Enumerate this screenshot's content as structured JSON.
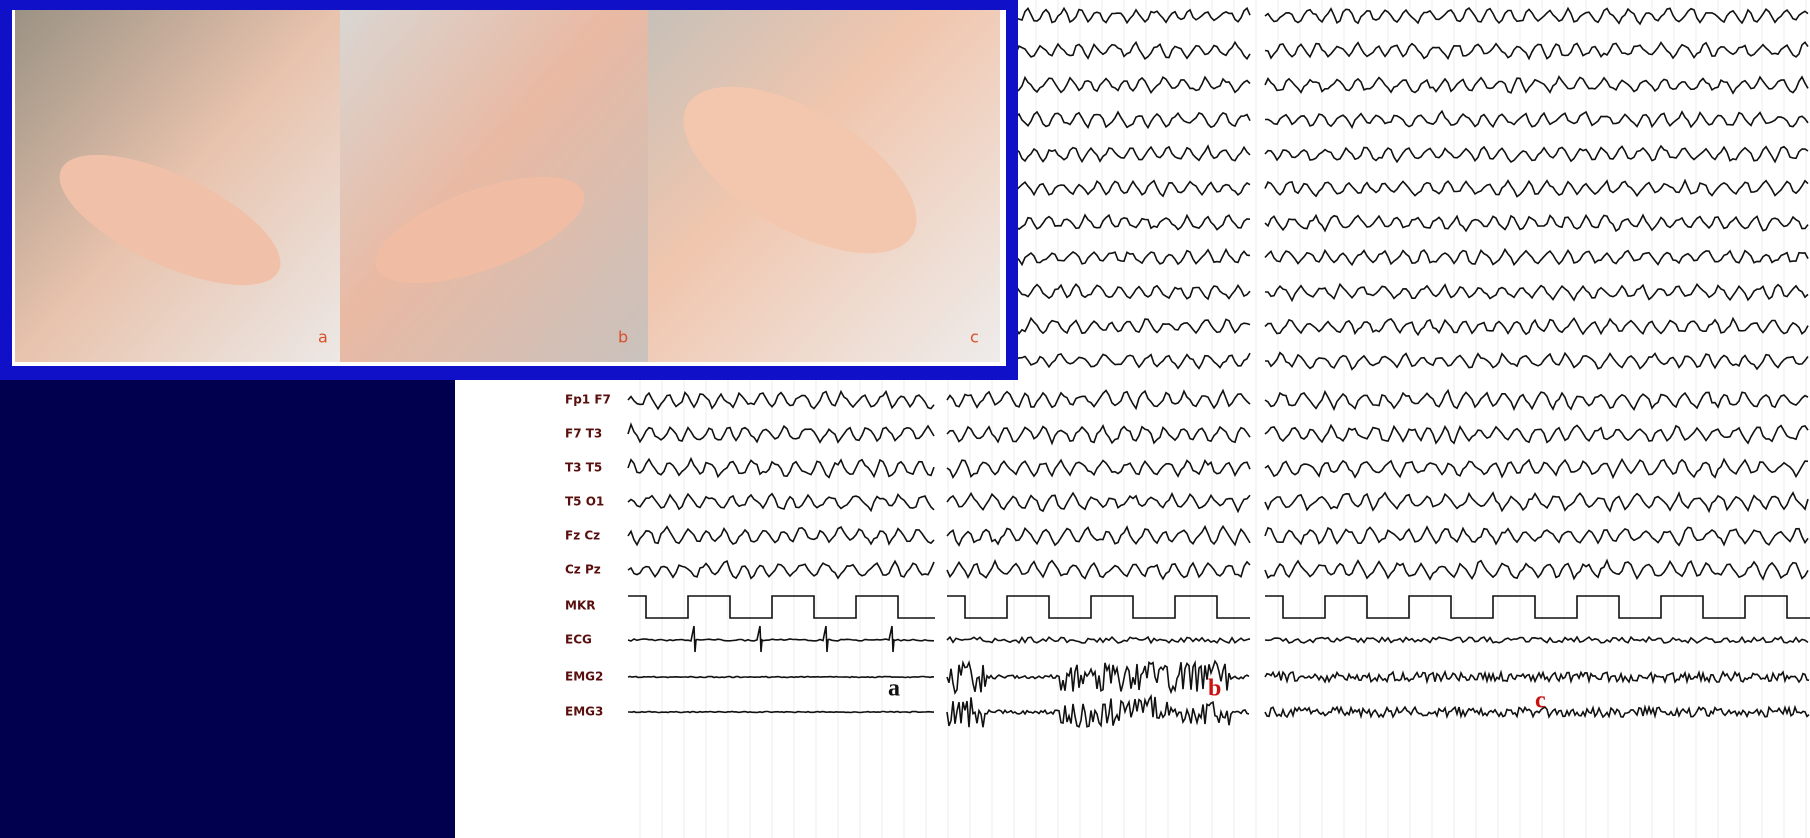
{
  "photos": {
    "labels": [
      "a",
      "b",
      "c"
    ]
  },
  "eeg": {
    "channels": [
      "Fp1 F7",
      "F7 T3",
      "T3 T5",
      "T5 O1",
      "Fz Cz",
      "Cz Pz",
      "MKR",
      "ECG",
      "EMG2",
      "EMG3"
    ],
    "panel_labels": [
      "a",
      "b",
      "c"
    ]
  }
}
